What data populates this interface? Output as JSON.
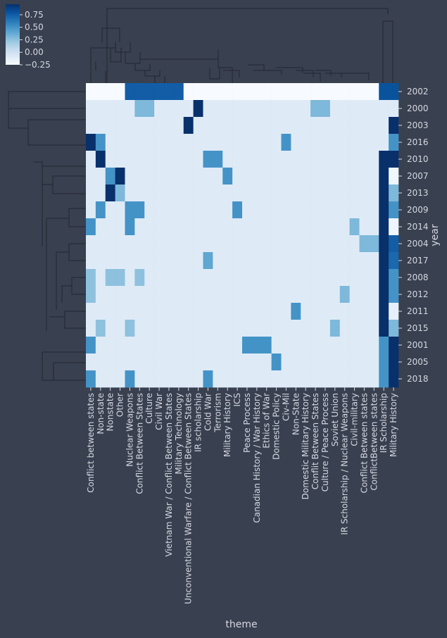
{
  "chart_data": {
    "type": "heatmap",
    "xlabel": "theme",
    "ylabel": "year",
    "columns": [
      "Conflict between states",
      "Non-state",
      "Nonstate",
      "Other",
      "Nuclear Weapons",
      "Conflict Between States",
      "Culture",
      "Civil War",
      "Vietnam War / Conflict Between States",
      "Military Technology",
      "Unconventional Warfare / Conflict Between States",
      "IR scholarship",
      "Cold War",
      "Terrorism",
      "Military History",
      "ICS",
      "Peace Process",
      "Canadian History / War History",
      "Ethics of War",
      "Domestic Policy",
      "Civ-Mil",
      "Non-State",
      "Domestic Military History",
      "Conflit Between States",
      "Culture / Peace Process",
      "Soviet Union",
      "IR Scholarship / Nuclear Weapons",
      "Civil-military",
      "Conflict Between states",
      "ConflictBetween states",
      "IR Scholarship",
      "Military History"
    ],
    "rows": [
      "2002",
      "2000",
      "2003",
      "2016",
      "2010",
      "2007",
      "2013",
      "2009",
      "2014",
      "2004",
      "2017",
      "2008",
      "2012",
      "2011",
      "2015",
      "2001",
      "2005",
      "2018"
    ],
    "values": [
      [
        -0.25,
        -0.25,
        -0.25,
        -0.25,
        0.75,
        0.75,
        0.75,
        0.75,
        0.75,
        0.75,
        -0.25,
        -0.25,
        -0.25,
        -0.25,
        -0.25,
        -0.25,
        -0.25,
        -0.25,
        -0.25,
        -0.25,
        -0.25,
        -0.25,
        -0.25,
        -0.25,
        -0.25,
        -0.25,
        -0.25,
        -0.25,
        -0.25,
        -0.25,
        0.8,
        0.8
      ],
      [
        -0.1,
        -0.1,
        -0.1,
        -0.1,
        -0.1,
        0.3,
        0.3,
        -0.1,
        -0.1,
        -0.1,
        -0.1,
        0.96,
        -0.1,
        -0.1,
        -0.1,
        -0.1,
        -0.1,
        -0.1,
        -0.1,
        -0.1,
        -0.1,
        -0.1,
        -0.1,
        0.3,
        0.3,
        -0.1,
        -0.1,
        -0.1,
        -0.1,
        -0.1,
        -0.1,
        -0.1
      ],
      [
        -0.1,
        -0.1,
        -0.1,
        -0.1,
        -0.1,
        -0.1,
        -0.1,
        -0.1,
        -0.1,
        -0.1,
        0.96,
        -0.1,
        -0.1,
        -0.1,
        -0.1,
        -0.1,
        -0.1,
        -0.1,
        -0.1,
        -0.1,
        -0.1,
        -0.1,
        -0.1,
        -0.1,
        -0.1,
        -0.1,
        -0.1,
        -0.1,
        -0.1,
        -0.1,
        -0.1,
        0.96
      ],
      [
        0.96,
        0.5,
        -0.1,
        -0.1,
        -0.1,
        -0.1,
        -0.1,
        -0.1,
        -0.1,
        -0.1,
        -0.1,
        -0.1,
        -0.1,
        -0.1,
        -0.1,
        -0.1,
        -0.1,
        -0.1,
        -0.1,
        -0.1,
        0.5,
        -0.1,
        -0.1,
        -0.1,
        -0.1,
        -0.1,
        -0.1,
        -0.1,
        -0.1,
        -0.1,
        -0.1,
        0.5
      ],
      [
        -0.1,
        0.96,
        -0.1,
        -0.1,
        -0.1,
        -0.1,
        -0.1,
        -0.1,
        -0.1,
        -0.1,
        -0.1,
        -0.1,
        0.5,
        0.5,
        -0.1,
        -0.1,
        -0.1,
        -0.1,
        -0.1,
        -0.1,
        -0.1,
        -0.1,
        -0.1,
        -0.1,
        -0.1,
        -0.1,
        -0.1,
        -0.1,
        -0.1,
        -0.1,
        0.96,
        0.96
      ],
      [
        -0.1,
        -0.1,
        0.5,
        0.96,
        -0.1,
        -0.1,
        -0.1,
        -0.1,
        -0.1,
        -0.1,
        -0.1,
        -0.1,
        -0.1,
        -0.1,
        0.5,
        -0.1,
        -0.1,
        -0.1,
        -0.1,
        -0.1,
        -0.1,
        -0.1,
        -0.1,
        -0.1,
        -0.1,
        -0.1,
        -0.1,
        -0.1,
        -0.1,
        -0.1,
        0.96,
        -0.2
      ],
      [
        -0.1,
        -0.1,
        0.96,
        0.3,
        -0.1,
        -0.1,
        -0.1,
        -0.1,
        -0.1,
        -0.1,
        -0.1,
        -0.1,
        -0.1,
        -0.1,
        -0.1,
        -0.1,
        -0.1,
        -0.1,
        -0.1,
        -0.1,
        -0.1,
        -0.1,
        -0.1,
        -0.1,
        -0.1,
        -0.1,
        -0.1,
        -0.1,
        -0.1,
        -0.1,
        0.96,
        0.3
      ],
      [
        -0.1,
        0.5,
        -0.1,
        -0.1,
        0.5,
        0.5,
        -0.1,
        -0.1,
        -0.1,
        -0.1,
        -0.1,
        -0.1,
        -0.1,
        -0.1,
        -0.1,
        0.5,
        -0.1,
        -0.1,
        -0.1,
        -0.1,
        -0.1,
        -0.1,
        -0.1,
        -0.1,
        -0.1,
        -0.1,
        -0.1,
        -0.1,
        -0.1,
        -0.1,
        0.96,
        0.5
      ],
      [
        0.5,
        -0.1,
        -0.1,
        -0.1,
        0.5,
        -0.1,
        -0.1,
        -0.1,
        -0.1,
        -0.1,
        -0.1,
        -0.1,
        -0.1,
        -0.1,
        -0.1,
        -0.1,
        -0.1,
        -0.1,
        -0.1,
        -0.1,
        -0.1,
        -0.1,
        -0.1,
        -0.1,
        -0.1,
        -0.1,
        -0.1,
        0.3,
        -0.1,
        -0.1,
        0.96,
        -0.2
      ],
      [
        -0.1,
        -0.1,
        -0.1,
        -0.1,
        -0.1,
        -0.1,
        -0.1,
        -0.1,
        -0.1,
        -0.1,
        -0.1,
        -0.1,
        -0.1,
        -0.1,
        -0.1,
        -0.1,
        -0.1,
        -0.1,
        -0.1,
        -0.1,
        -0.1,
        -0.1,
        -0.1,
        -0.1,
        -0.1,
        -0.1,
        -0.1,
        -0.1,
        0.3,
        0.3,
        0.96,
        0.75
      ],
      [
        -0.1,
        -0.1,
        -0.1,
        -0.1,
        -0.1,
        -0.1,
        -0.1,
        -0.1,
        -0.1,
        -0.1,
        -0.1,
        -0.1,
        0.4,
        -0.1,
        -0.1,
        -0.1,
        -0.1,
        -0.1,
        -0.1,
        -0.1,
        -0.1,
        -0.1,
        -0.1,
        -0.1,
        -0.1,
        -0.1,
        -0.1,
        -0.1,
        -0.1,
        -0.1,
        0.96,
        0.7
      ],
      [
        0.25,
        -0.1,
        0.25,
        0.25,
        -0.1,
        0.25,
        -0.1,
        -0.1,
        -0.1,
        -0.1,
        -0.1,
        -0.1,
        -0.1,
        -0.1,
        -0.1,
        -0.1,
        -0.1,
        -0.1,
        -0.1,
        -0.1,
        -0.1,
        -0.1,
        -0.1,
        -0.1,
        -0.1,
        -0.1,
        -0.1,
        -0.1,
        -0.1,
        -0.1,
        0.96,
        0.5
      ],
      [
        0.25,
        -0.1,
        -0.1,
        -0.1,
        -0.1,
        -0.1,
        -0.1,
        -0.1,
        -0.1,
        -0.1,
        -0.1,
        -0.1,
        -0.1,
        -0.1,
        -0.1,
        -0.1,
        -0.1,
        -0.1,
        -0.1,
        -0.1,
        -0.1,
        -0.1,
        -0.1,
        -0.1,
        -0.1,
        -0.1,
        0.3,
        -0.1,
        -0.1,
        -0.1,
        0.96,
        0.5
      ],
      [
        -0.1,
        -0.1,
        -0.1,
        -0.1,
        -0.1,
        -0.1,
        -0.1,
        -0.1,
        -0.1,
        -0.1,
        -0.1,
        -0.1,
        -0.1,
        -0.1,
        -0.1,
        -0.1,
        -0.1,
        -0.1,
        -0.1,
        -0.1,
        -0.1,
        0.5,
        -0.1,
        -0.1,
        -0.1,
        -0.1,
        -0.1,
        -0.1,
        -0.1,
        -0.1,
        0.96,
        -0.15
      ],
      [
        -0.1,
        0.25,
        -0.1,
        -0.1,
        0.25,
        -0.1,
        -0.1,
        -0.1,
        -0.1,
        -0.1,
        -0.1,
        -0.1,
        -0.1,
        -0.1,
        -0.1,
        -0.1,
        -0.1,
        -0.1,
        -0.1,
        -0.1,
        -0.1,
        -0.1,
        -0.1,
        -0.1,
        -0.1,
        0.3,
        -0.1,
        -0.1,
        -0.1,
        -0.1,
        0.96,
        0.3
      ],
      [
        0.5,
        -0.1,
        -0.1,
        -0.1,
        -0.1,
        -0.1,
        -0.1,
        -0.1,
        -0.1,
        -0.1,
        -0.1,
        -0.1,
        -0.1,
        -0.1,
        -0.1,
        -0.1,
        0.5,
        0.5,
        0.5,
        -0.1,
        -0.1,
        -0.1,
        -0.1,
        -0.1,
        -0.1,
        -0.1,
        -0.1,
        -0.1,
        -0.1,
        -0.1,
        0.5,
        0.96
      ],
      [
        -0.1,
        -0.1,
        -0.1,
        -0.1,
        -0.1,
        -0.1,
        -0.1,
        -0.1,
        -0.1,
        -0.1,
        -0.1,
        -0.1,
        -0.1,
        -0.1,
        -0.1,
        -0.1,
        -0.1,
        -0.1,
        -0.1,
        0.5,
        -0.1,
        -0.1,
        -0.1,
        -0.1,
        -0.1,
        -0.1,
        -0.1,
        -0.1,
        -0.1,
        -0.1,
        0.5,
        0.96
      ],
      [
        0.5,
        -0.1,
        -0.1,
        -0.1,
        0.5,
        -0.1,
        -0.1,
        -0.1,
        -0.1,
        -0.1,
        -0.1,
        -0.1,
        0.5,
        -0.1,
        -0.1,
        -0.1,
        -0.1,
        -0.1,
        -0.1,
        -0.1,
        -0.1,
        -0.1,
        -0.1,
        -0.1,
        -0.1,
        -0.1,
        -0.1,
        -0.1,
        -0.1,
        -0.1,
        0.5,
        0.96
      ]
    ],
    "colormap": "Blues",
    "clim": [
      -0.25,
      0.96
    ],
    "cticks": [
      {
        "value": 0.75,
        "label": "0.75"
      },
      {
        "value": 0.5,
        "label": "0.50"
      },
      {
        "value": 0.25,
        "label": "0.25"
      },
      {
        "value": 0,
        "label": "0.00"
      },
      {
        "value": -0.25,
        "label": "−0.25"
      }
    ]
  }
}
